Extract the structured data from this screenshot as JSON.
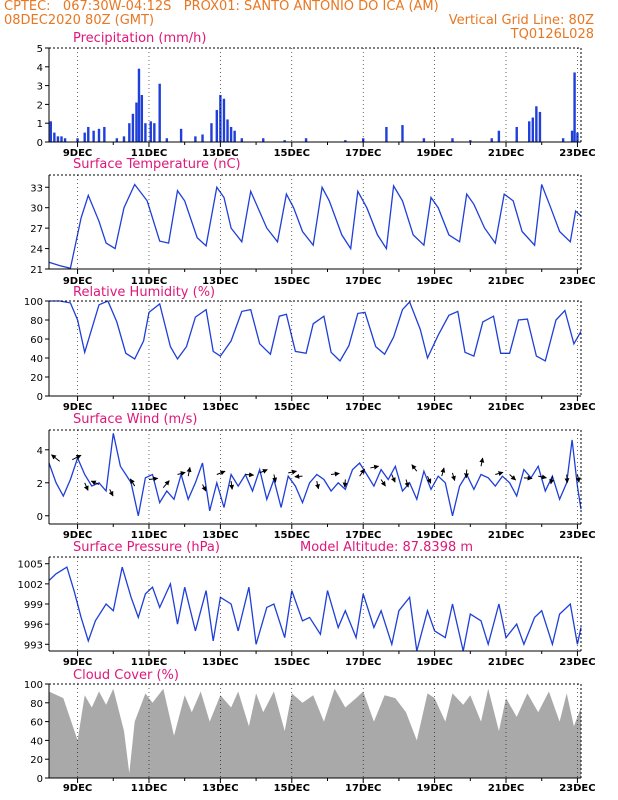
{
  "header": {
    "line1_left": "CPTEC:   067:30W-04:12S   PROX01: SANTO ANTONIO DO ICA (AM)",
    "line2_left": "08DEC2020 80Z (GMT)",
    "line2_right": "Vertical Grid Line: 80Z",
    "line3_right": "TQ0126L028"
  },
  "colors": {
    "header": "#e87722",
    "title": "#e0167a",
    "series": "#1f3fd8",
    "cloud": "#a9a9a9",
    "arrows": "#000000"
  },
  "x_axis": {
    "ticks": [
      "9DEC",
      "11DEC",
      "13DEC",
      "15DEC",
      "17DEC",
      "19DEC",
      "21DEC",
      "23DEC"
    ],
    "tick_days": [
      1,
      3,
      5,
      7,
      9,
      11,
      13,
      15
    ],
    "range_days": [
      0.2,
      15.1
    ]
  },
  "chart_data": [
    {
      "id": "precip",
      "type": "bar",
      "title": "Precipitation (mm/h)",
      "yticks": [
        "0",
        "1",
        "2",
        "3",
        "4",
        "5"
      ],
      "ylim": [
        0,
        5
      ],
      "bars": [
        [
          0.25,
          1.1
        ],
        [
          0.35,
          0.5
        ],
        [
          0.45,
          0.3
        ],
        [
          0.55,
          0.3
        ],
        [
          0.65,
          0.2
        ],
        [
          1.0,
          0.2
        ],
        [
          1.2,
          0.5
        ],
        [
          1.3,
          0.8
        ],
        [
          1.45,
          0.6
        ],
        [
          1.6,
          0.7
        ],
        [
          1.75,
          0.8
        ],
        [
          2.1,
          0.2
        ],
        [
          2.3,
          0.3
        ],
        [
          2.45,
          1.0
        ],
        [
          2.55,
          1.5
        ],
        [
          2.65,
          2.1
        ],
        [
          2.72,
          3.9
        ],
        [
          2.8,
          2.5
        ],
        [
          2.9,
          1.0
        ],
        [
          3.05,
          1.1
        ],
        [
          3.15,
          1.0
        ],
        [
          3.3,
          3.1
        ],
        [
          3.5,
          0.2
        ],
        [
          3.9,
          0.7
        ],
        [
          4.3,
          0.3
        ],
        [
          4.5,
          0.4
        ],
        [
          4.75,
          1.0
        ],
        [
          4.9,
          1.7
        ],
        [
          5.0,
          2.5
        ],
        [
          5.1,
          2.3
        ],
        [
          5.2,
          1.2
        ],
        [
          5.3,
          0.8
        ],
        [
          5.4,
          0.6
        ],
        [
          5.6,
          0.2
        ],
        [
          6.2,
          0.2
        ],
        [
          6.8,
          0.1
        ],
        [
          7.4,
          0.2
        ],
        [
          8.5,
          0.1
        ],
        [
          9.0,
          0.2
        ],
        [
          9.65,
          0.8
        ],
        [
          10.1,
          0.9
        ],
        [
          10.7,
          0.2
        ],
        [
          11.5,
          0.2
        ],
        [
          12.0,
          0.1
        ],
        [
          12.6,
          0.2
        ],
        [
          12.8,
          0.6
        ],
        [
          13.3,
          0.8
        ],
        [
          13.65,
          1.1
        ],
        [
          13.75,
          1.3
        ],
        [
          13.85,
          1.9
        ],
        [
          13.95,
          1.6
        ],
        [
          14.6,
          0.2
        ],
        [
          14.85,
          0.6
        ],
        [
          14.92,
          3.7
        ],
        [
          15.0,
          0.5
        ]
      ]
    },
    {
      "id": "temp",
      "type": "line",
      "title": "Surface Temperature (nC)",
      "yticks": [
        "21",
        "24",
        "27",
        "30",
        "33"
      ],
      "ylim": [
        21,
        34.8
      ],
      "x": [
        0.2,
        0.5,
        0.8,
        1.1,
        1.3,
        1.6,
        1.8,
        2.05,
        2.3,
        2.6,
        2.95,
        3.3,
        3.55,
        3.8,
        4.0,
        4.35,
        4.6,
        4.9,
        5.1,
        5.3,
        5.6,
        5.85,
        6.05,
        6.3,
        6.6,
        6.85,
        7.05,
        7.3,
        7.6,
        7.85,
        8.05,
        8.4,
        8.65,
        8.85,
        9.1,
        9.4,
        9.65,
        9.85,
        10.1,
        10.4,
        10.7,
        10.9,
        11.1,
        11.4,
        11.7,
        11.9,
        12.1,
        12.4,
        12.7,
        12.95,
        13.2,
        13.45,
        13.8,
        14.0,
        14.25,
        14.5,
        14.8,
        14.95,
        15.1
      ],
      "y": [
        22,
        21.5,
        21.1,
        28.5,
        31.8,
        28,
        24.8,
        24,
        30,
        33.4,
        31,
        25.1,
        24.8,
        32.5,
        31,
        25.6,
        24.4,
        33,
        31.5,
        27,
        25,
        32.4,
        30,
        27,
        25,
        32,
        30,
        26.5,
        24.5,
        33,
        31,
        26,
        24,
        32.4,
        30,
        26,
        24,
        33.2,
        31,
        26,
        24.5,
        31.5,
        30,
        26,
        25,
        32,
        30.5,
        27,
        24.8,
        32,
        31,
        26.5,
        24.5,
        33.4,
        30,
        26.5,
        25,
        29.5,
        28.8
      ]
    },
    {
      "id": "rh",
      "type": "line",
      "title": "Relative Humidity (%)",
      "yticks": [
        "0",
        "20",
        "40",
        "60",
        "80",
        "100"
      ],
      "ylim": [
        0,
        100
      ],
      "x": [
        0.2,
        0.5,
        0.8,
        1.0,
        1.2,
        1.6,
        1.85,
        2.1,
        2.35,
        2.6,
        2.85,
        3.0,
        3.3,
        3.6,
        3.8,
        4.05,
        4.3,
        4.6,
        4.8,
        5.0,
        5.3,
        5.6,
        5.85,
        6.1,
        6.4,
        6.65,
        6.85,
        7.1,
        7.4,
        7.6,
        7.9,
        8.1,
        8.35,
        8.6,
        8.85,
        9.05,
        9.35,
        9.6,
        9.85,
        10.1,
        10.3,
        10.6,
        10.8,
        11.1,
        11.4,
        11.65,
        11.85,
        12.1,
        12.35,
        12.65,
        12.85,
        13.1,
        13.35,
        13.6,
        13.85,
        14.1,
        14.4,
        14.65,
        14.9,
        15.1
      ],
      "y": [
        100,
        100,
        98,
        80,
        46,
        96,
        100,
        78,
        45,
        39,
        58,
        88,
        97,
        52,
        39,
        52,
        83,
        91,
        47,
        42,
        58,
        89,
        91,
        55,
        44,
        84,
        86,
        47,
        45,
        76,
        84,
        46,
        37,
        53,
        87,
        88,
        52,
        44,
        62,
        91,
        99,
        70,
        40,
        64,
        85,
        89,
        46,
        42,
        78,
        84,
        45,
        45,
        80,
        81,
        42,
        37,
        80,
        90,
        55,
        68
      ]
    },
    {
      "id": "wind",
      "type": "line",
      "title": "Surface Wind (m/s)",
      "yticks": [
        "0",
        "2",
        "4"
      ],
      "ylim": [
        -0.5,
        5.2
      ],
      "x": [
        0.2,
        0.4,
        0.6,
        0.8,
        1.0,
        1.2,
        1.4,
        1.6,
        1.8,
        2.0,
        2.2,
        2.35,
        2.5,
        2.7,
        2.9,
        3.1,
        3.3,
        3.5,
        3.7,
        3.9,
        4.1,
        4.3,
        4.5,
        4.7,
        4.9,
        5.1,
        5.3,
        5.5,
        5.7,
        5.9,
        6.1,
        6.3,
        6.5,
        6.7,
        6.9,
        7.1,
        7.3,
        7.5,
        7.7,
        7.9,
        8.1,
        8.3,
        8.5,
        8.7,
        8.9,
        9.1,
        9.3,
        9.5,
        9.7,
        9.9,
        10.1,
        10.3,
        10.5,
        10.7,
        10.9,
        11.1,
        11.3,
        11.5,
        11.7,
        11.9,
        12.1,
        12.3,
        12.5,
        12.7,
        12.9,
        13.1,
        13.3,
        13.5,
        13.7,
        13.9,
        14.1,
        14.3,
        14.5,
        14.7,
        14.85,
        15.0,
        15.1
      ],
      "y": [
        3.2,
        2.0,
        1.2,
        2.2,
        3.5,
        2.5,
        1.8,
        2.0,
        1.5,
        5.0,
        3.0,
        2.5,
        2.0,
        0.0,
        2.3,
        2.5,
        0.8,
        1.5,
        1.0,
        2.5,
        1.0,
        2.0,
        3.2,
        0.3,
        2.0,
        0.5,
        2.5,
        1.8,
        2.5,
        1.5,
        2.8,
        1.0,
        2.2,
        0.5,
        2.4,
        1.8,
        0.8,
        2.0,
        2.5,
        2.2,
        1.5,
        2.0,
        1.6,
        2.8,
        3.2,
        2.5,
        1.8,
        2.8,
        2.2,
        3.0,
        1.5,
        2.0,
        1.0,
        2.7,
        1.6,
        2.4,
        2.0,
        0.0,
        1.8,
        2.5,
        1.6,
        2.5,
        2.3,
        1.8,
        2.4,
        2.0,
        1.2,
        2.8,
        2.3,
        3.0,
        1.5,
        2.4,
        1.0,
        2.0,
        4.6,
        1.8,
        0.4
      ],
      "arrows": [
        [
          0.5,
          3.3,
          -1.5,
          1.2
        ],
        [
          0.85,
          3.4,
          1.6,
          0.8
        ],
        [
          1.2,
          2.0,
          0.6,
          -1.4
        ],
        [
          1.6,
          1.9,
          -1.4,
          0.6
        ],
        [
          1.9,
          1.6,
          0.6,
          -1.2
        ],
        [
          2.6,
          1.8,
          -0.8,
          1.3
        ],
        [
          3.0,
          2.2,
          1.6,
          0.2
        ],
        [
          3.4,
          1.7,
          1.1,
          1.3
        ],
        [
          3.8,
          2.5,
          1.4,
          0.4
        ],
        [
          4.1,
          2.4,
          0.3,
          1.6
        ],
        [
          4.5,
          1.9,
          0.6,
          -1.2
        ],
        [
          4.9,
          2.5,
          1.5,
          0.6
        ],
        [
          5.3,
          2.1,
          0.2,
          -1.5
        ],
        [
          5.7,
          2.5,
          1.5,
          -0.1
        ],
        [
          6.1,
          2.6,
          1.4,
          0.6
        ],
        [
          6.5,
          2.5,
          0.3,
          -1.4
        ],
        [
          6.9,
          2.6,
          1.5,
          0.3
        ],
        [
          7.3,
          2.4,
          -1.4,
          -0.1
        ],
        [
          7.7,
          2.1,
          0.3,
          -1.4
        ],
        [
          8.1,
          2.5,
          1.5,
          0.2
        ],
        [
          8.5,
          2.2,
          -0.1,
          -1.4
        ],
        [
          8.9,
          2.4,
          0.9,
          1.3
        ],
        [
          9.2,
          2.9,
          1.5,
          0.3
        ],
        [
          9.5,
          2.2,
          0.8,
          -1.2
        ],
        [
          9.8,
          2.5,
          0.6,
          -1.4
        ],
        [
          10.2,
          2.2,
          0.4,
          -1.4
        ],
        [
          10.5,
          2.7,
          -0.9,
          1.2
        ],
        [
          10.8,
          2.4,
          0.6,
          -1.3
        ],
        [
          11.2,
          2.4,
          0.4,
          1.5
        ],
        [
          11.5,
          2.6,
          0.4,
          -1.4
        ],
        [
          11.9,
          2.8,
          -0.1,
          -1.5
        ],
        [
          12.3,
          3.0,
          0.3,
          1.5
        ],
        [
          12.7,
          2.5,
          1.4,
          0.4
        ],
        [
          13.1,
          2.5,
          1.1,
          -1.0
        ],
        [
          13.5,
          2.3,
          1.5,
          -0.1
        ],
        [
          13.9,
          2.4,
          1.5,
          -0.3
        ],
        [
          14.3,
          2.4,
          -0.3,
          -1.4
        ],
        [
          14.7,
          2.5,
          0.1,
          -1.5
        ],
        [
          15.0,
          2.5,
          0.3,
          -1.4
        ]
      ]
    },
    {
      "id": "pres",
      "type": "line",
      "title": "Surface Pressure (hPa)",
      "subtitle": "Model Altitude: 87.8398 m",
      "yticks": [
        "993",
        "996",
        "999",
        "1002",
        "1005"
      ],
      "ylim": [
        992,
        1006
      ],
      "x": [
        0.2,
        0.4,
        0.7,
        0.9,
        1.1,
        1.3,
        1.5,
        1.8,
        2.0,
        2.25,
        2.5,
        2.7,
        2.9,
        3.1,
        3.3,
        3.6,
        3.8,
        4.0,
        4.3,
        4.6,
        4.8,
        5.0,
        5.3,
        5.5,
        5.8,
        6.0,
        6.3,
        6.5,
        6.8,
        7.0,
        7.3,
        7.5,
        7.8,
        8.0,
        8.3,
        8.5,
        8.8,
        9.0,
        9.3,
        9.5,
        9.8,
        10.0,
        10.3,
        10.5,
        10.8,
        11.0,
        11.3,
        11.5,
        11.8,
        12.0,
        12.3,
        12.5,
        12.8,
        13.0,
        13.3,
        13.5,
        13.8,
        14.0,
        14.3,
        14.5,
        14.8,
        15.0,
        15.1
      ],
      "y": [
        1002.5,
        1003.5,
        1004.5,
        1001,
        997,
        993.5,
        996.5,
        999,
        998,
        1004.5,
        1000,
        997,
        1000.5,
        1001.5,
        998.5,
        1002,
        996,
        1001.5,
        995,
        1001,
        993.5,
        1000,
        999,
        995,
        1001.5,
        993,
        998.5,
        999,
        994,
        1001,
        996.5,
        997,
        994.5,
        1001,
        995.5,
        998,
        994,
        1000.5,
        995.5,
        998,
        993,
        998,
        1000,
        992,
        998,
        995,
        994,
        999,
        992,
        997.5,
        996.5,
        993,
        999,
        994,
        996,
        993,
        997,
        998,
        993,
        997.5,
        999,
        993,
        995.5
      ]
    },
    {
      "id": "cloud",
      "type": "area",
      "title": "Cloud Cover (%)",
      "yticks": [
        "0",
        "20",
        "40",
        "60",
        "80",
        "100"
      ],
      "ylim": [
        0,
        100
      ],
      "x": [
        0.2,
        0.6,
        1.0,
        1.2,
        1.4,
        1.6,
        1.8,
        2.0,
        2.3,
        2.45,
        2.6,
        2.9,
        3.1,
        3.4,
        3.7,
        4.0,
        4.2,
        4.45,
        4.7,
        5.0,
        5.3,
        5.5,
        5.8,
        6.0,
        6.2,
        6.5,
        6.8,
        7.0,
        7.3,
        7.6,
        7.9,
        8.2,
        8.5,
        8.8,
        9.0,
        9.3,
        9.6,
        9.9,
        10.2,
        10.5,
        10.8,
        11.0,
        11.3,
        11.5,
        11.8,
        12.0,
        12.3,
        12.5,
        12.8,
        13.0,
        13.3,
        13.6,
        13.9,
        14.2,
        14.5,
        14.7,
        14.9,
        15.1
      ],
      "y": [
        92,
        85,
        40,
        88,
        75,
        92,
        78,
        95,
        50,
        5,
        60,
        90,
        80,
        95,
        45,
        88,
        70,
        92,
        60,
        88,
        75,
        92,
        55,
        90,
        70,
        92,
        50,
        90,
        80,
        88,
        60,
        95,
        75,
        85,
        92,
        60,
        88,
        85,
        70,
        40,
        90,
        85,
        60,
        90,
        78,
        88,
        60,
        95,
        50,
        85,
        65,
        90,
        70,
        92,
        60,
        90,
        55,
        75
      ]
    }
  ]
}
